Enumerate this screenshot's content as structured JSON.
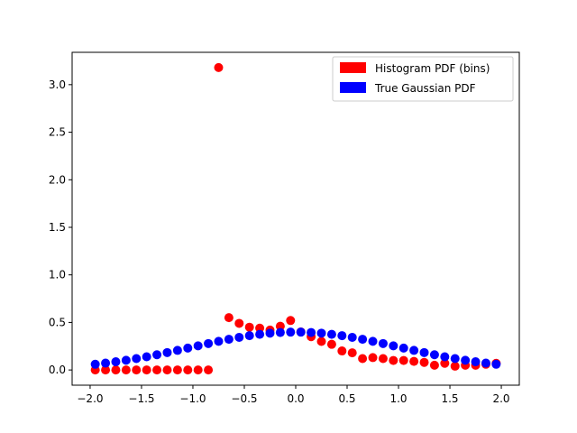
{
  "chart_data": {
    "type": "scatter",
    "xlim": [
      -2.175,
      2.175
    ],
    "ylim": [
      -0.16,
      3.34
    ],
    "xticks": [
      -2.0,
      -1.5,
      -1.0,
      -0.5,
      0.0,
      0.5,
      1.0,
      1.5,
      2.0
    ],
    "xtick_labels": [
      "−2.0",
      "−1.5",
      "−1.0",
      "−0.5",
      "0.0",
      "0.5",
      "1.0",
      "1.5",
      "2.0"
    ],
    "yticks": [
      0.0,
      0.5,
      1.0,
      1.5,
      2.0,
      2.5,
      3.0
    ],
    "ytick_labels": [
      "0.0",
      "0.5",
      "1.0",
      "1.5",
      "2.0",
      "2.5",
      "3.0"
    ],
    "grid": false,
    "legend_position": "top-right",
    "series": [
      {
        "name": "Histogram PDF (bins)",
        "color": "#ff0000",
        "x": [
          -1.95,
          -1.85,
          -1.75,
          -1.65,
          -1.55,
          -1.45,
          -1.35,
          -1.25,
          -1.15,
          -1.05,
          -0.95,
          -0.85,
          -0.75,
          -0.65,
          -0.55,
          -0.45,
          -0.35,
          -0.25,
          -0.15,
          -0.05,
          0.05,
          0.15,
          0.25,
          0.35,
          0.45,
          0.55,
          0.65,
          0.75,
          0.85,
          0.95,
          1.05,
          1.15,
          1.25,
          1.35,
          1.45,
          1.55,
          1.65,
          1.75,
          1.85,
          1.95
        ],
        "y": [
          0.0,
          0.0,
          0.0,
          0.0,
          0.0,
          0.0,
          0.0,
          0.0,
          0.0,
          0.0,
          0.0,
          0.0,
          3.18,
          0.55,
          0.49,
          0.45,
          0.44,
          0.42,
          0.46,
          0.52,
          0.4,
          0.35,
          0.3,
          0.27,
          0.2,
          0.18,
          0.12,
          0.13,
          0.12,
          0.1,
          0.1,
          0.09,
          0.08,
          0.05,
          0.07,
          0.04,
          0.05,
          0.05,
          0.06,
          0.07
        ]
      },
      {
        "name": "True Gaussian PDF",
        "color": "#0000ff",
        "x": [
          -1.95,
          -1.85,
          -1.75,
          -1.65,
          -1.55,
          -1.45,
          -1.35,
          -1.25,
          -1.15,
          -1.05,
          -0.95,
          -0.85,
          -0.75,
          -0.65,
          -0.55,
          -0.45,
          -0.35,
          -0.25,
          -0.15,
          -0.05,
          0.05,
          0.15,
          0.25,
          0.35,
          0.45,
          0.55,
          0.65,
          0.75,
          0.85,
          0.95,
          1.05,
          1.15,
          1.25,
          1.35,
          1.45,
          1.55,
          1.65,
          1.75,
          1.85,
          1.95
        ],
        "y": [
          0.06,
          0.072,
          0.086,
          0.102,
          0.12,
          0.139,
          0.16,
          0.183,
          0.206,
          0.23,
          0.254,
          0.278,
          0.301,
          0.323,
          0.343,
          0.361,
          0.375,
          0.387,
          0.394,
          0.398,
          0.398,
          0.394,
          0.387,
          0.375,
          0.361,
          0.343,
          0.323,
          0.301,
          0.278,
          0.254,
          0.23,
          0.206,
          0.183,
          0.16,
          0.139,
          0.12,
          0.102,
          0.086,
          0.072,
          0.06
        ]
      }
    ]
  }
}
